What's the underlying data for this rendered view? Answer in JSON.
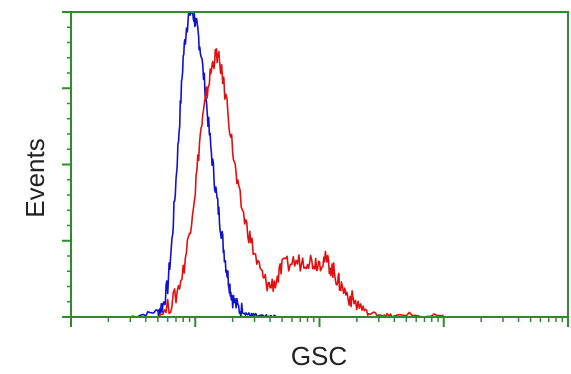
{
  "chart_data": {
    "type": "line",
    "xlabel": "GSC",
    "ylabel": "Events",
    "x_scale": "log",
    "xlim": [
      1,
      10000
    ],
    "ylim": [
      0,
      100
    ],
    "grid": false,
    "frame_color": "#2e8b2e",
    "series": [
      {
        "color": "#1010d0",
        "x": [
          3.0,
          4.0,
          5.0,
          5.5,
          6.0,
          6.5,
          7.0,
          7.5,
          8.0,
          8.5,
          9.0,
          9.5,
          10.0,
          10.5,
          11.0,
          12.0,
          13.0,
          14.0,
          15.0,
          16.0,
          17.0,
          18.0,
          19.0,
          20.0,
          22.0,
          24.0,
          26.0,
          28.0,
          30.0,
          33.0,
          36.0,
          40.0,
          45.0
        ],
        "y": [
          0,
          1,
          2,
          4,
          10,
          25,
          45,
          65,
          85,
          95,
          100,
          100,
          97,
          93,
          88,
          75,
          60,
          48,
          38,
          30,
          22,
          15,
          10,
          6,
          3,
          2,
          1,
          0.5,
          0.5,
          0,
          0,
          0,
          0
        ]
      },
      {
        "color": "#e01010",
        "x": [
          5.0,
          6.0,
          7.0,
          8.0,
          9.0,
          10.0,
          11.0,
          12.0,
          13.0,
          14.0,
          15.0,
          16.0,
          18.0,
          20.0,
          22.0,
          25.0,
          28.0,
          32.0,
          36.0,
          40.0,
          45.0,
          50.0,
          60.0,
          70.0,
          80.0,
          90.0,
          100.0,
          110.0,
          120.0,
          130.0,
          140.0,
          150.0,
          170.0,
          190.0,
          220.0,
          250.0,
          300.0,
          350.0,
          400.0,
          500.0,
          700.0,
          1000.0
        ],
        "y": [
          0,
          3,
          7,
          15,
          28,
          42,
          60,
          70,
          78,
          84,
          86,
          82,
          70,
          55,
          42,
          32,
          25,
          17,
          12,
          10,
          12,
          16,
          18,
          18,
          19,
          18,
          18,
          19,
          17,
          15,
          12,
          10,
          7,
          5,
          3,
          1,
          1,
          0.5,
          0,
          1,
          0,
          0.5
        ]
      }
    ]
  }
}
